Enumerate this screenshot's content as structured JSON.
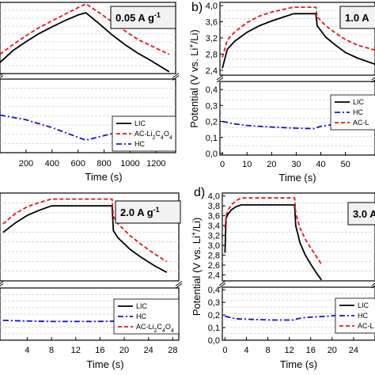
{
  "colors": {
    "LIC": "#000000",
    "AC": "#ee1111",
    "HC": "#1111cc",
    "grid": "#d0d0d0",
    "rate_box": "#f2f2f2"
  },
  "chart_data": [
    {
      "id": "a",
      "type": "line",
      "letter": "",
      "rate": "0.05 A g",
      "rate_sup": "-1",
      "xlabel": "Time (s)",
      "ylabel": "",
      "xlim": [
        0,
        1350
      ],
      "xticks": [
        "200",
        "400",
        "600",
        "800",
        "1000",
        "1200"
      ],
      "xtick_values": [
        200,
        400,
        600,
        800,
        1000,
        1200
      ],
      "yticks_upper": [],
      "yticks_lower": [],
      "legend_order": [
        "LIC",
        "AC",
        "HC"
      ],
      "series": [
        {
          "name": "LIC",
          "key": "LIC",
          "style": "solid",
          "x": [
            0,
            100,
            200,
            300,
            400,
            500,
            600,
            660,
            760,
            860,
            960,
            1060,
            1160,
            1300
          ],
          "y": [
            2.5,
            2.82,
            3.06,
            3.28,
            3.46,
            3.63,
            3.78,
            3.84,
            3.55,
            3.25,
            2.98,
            2.75,
            2.55,
            2.25
          ]
        },
        {
          "name": "AC-Li",
          "key": "AC",
          "style": "dashed",
          "x": [
            0,
            100,
            200,
            300,
            400,
            500,
            600,
            660,
            760,
            860,
            960,
            1060,
            1160,
            1300
          ],
          "y": [
            2.72,
            2.98,
            3.22,
            3.44,
            3.62,
            3.8,
            3.98,
            4.08,
            3.85,
            3.6,
            3.35,
            3.12,
            2.95,
            2.72
          ]
        },
        {
          "name": "HC",
          "key": "HC",
          "style": "dashdot",
          "x": [
            0,
            200,
            400,
            660,
            900,
            1100,
            1300
          ],
          "y": [
            0.22,
            0.19,
            0.14,
            0.06,
            0.11,
            0.15,
            0.19
          ]
        }
      ]
    },
    {
      "id": "b",
      "type": "line",
      "letter": "b)",
      "rate": "1.0 A",
      "rate_sup": "",
      "xlabel": "Time (s)",
      "ylabel": "Potential (V vs. Li",
      "ylabel_sup": "+",
      "ylabel_tail": "/Li)",
      "xlim": [
        -1,
        62
      ],
      "xticks": [
        "0",
        "10",
        "20",
        "30",
        "40",
        "50"
      ],
      "xtick_values": [
        0,
        10,
        20,
        30,
        40,
        50
      ],
      "yticks_upper": [
        "4,0",
        "3,6",
        "3,2",
        "2,8",
        "2,4"
      ],
      "yticks_upper_values": [
        4.0,
        3.6,
        3.2,
        2.8,
        2.4
      ],
      "yticks_lower": [
        "0,4",
        "0,3",
        "0,2",
        "0,1",
        "0,0"
      ],
      "yticks_lower_values": [
        0.4,
        0.3,
        0.2,
        0.1,
        0.0
      ],
      "legend_order": [
        "LIC",
        "HC",
        "AC"
      ],
      "series": [
        {
          "name": "LIC",
          "key": "LIC",
          "style": "solid",
          "x": [
            0,
            2,
            5,
            10,
            15,
            20,
            25,
            29,
            38,
            38.5,
            42,
            46,
            50,
            55,
            62
          ],
          "y": [
            2.45,
            2.92,
            3.12,
            3.34,
            3.5,
            3.62,
            3.72,
            3.8,
            3.8,
            3.5,
            3.22,
            3.02,
            2.84,
            2.7,
            2.55
          ]
        },
        {
          "name": "HC",
          "key": "HC",
          "style": "dashdot",
          "x": [
            0,
            5,
            10,
            20,
            30,
            37,
            38,
            40,
            45,
            50,
            55,
            62
          ],
          "y": [
            0.2,
            0.185,
            0.175,
            0.165,
            0.158,
            0.155,
            0.16,
            0.17,
            0.18,
            0.19,
            0.2,
            0.21
          ]
        },
        {
          "name": "AC-L",
          "key": "AC",
          "style": "dashed",
          "x": [
            0,
            2,
            5,
            10,
            15,
            20,
            25,
            29,
            38,
            38.5,
            42,
            46,
            50,
            55,
            62
          ],
          "y": [
            2.72,
            3.15,
            3.35,
            3.58,
            3.74,
            3.84,
            3.91,
            3.96,
            3.96,
            3.72,
            3.5,
            3.32,
            3.16,
            3.02,
            2.9
          ]
        }
      ]
    },
    {
      "id": "c",
      "type": "line",
      "letter": "",
      "rate": "2.0 A g",
      "rate_sup": "-1",
      "xlabel": "Time (s)",
      "ylabel": "",
      "xlim": [
        -0.5,
        29
      ],
      "xticks": [
        "4",
        "8",
        "12",
        "16",
        "20",
        "24",
        "28"
      ],
      "xtick_values": [
        4,
        8,
        12,
        16,
        20,
        24,
        28
      ],
      "yticks_upper": [],
      "yticks_lower": [],
      "legend_order": [
        "LIC",
        "HC",
        "AC"
      ],
      "series": [
        {
          "name": "LIC",
          "key": "LIC",
          "style": "solid",
          "x": [
            0,
            2,
            4,
            6,
            8,
            18,
            18.2,
            19,
            21,
            23,
            25,
            27
          ],
          "y": [
            3.18,
            3.4,
            3.58,
            3.7,
            3.8,
            3.8,
            3.22,
            3.05,
            2.78,
            2.58,
            2.4,
            2.25
          ]
        },
        {
          "name": "HC",
          "key": "HC",
          "style": "dashdot",
          "x": [
            0,
            3,
            8,
            14,
            18,
            18.8,
            21,
            24,
            27
          ],
          "y": [
            0.16,
            0.155,
            0.15,
            0.15,
            0.152,
            0.16,
            0.17,
            0.178,
            0.185
          ]
        },
        {
          "name": "AC-Li",
          "key": "AC",
          "style": "dashed",
          "x": [
            0,
            2,
            4,
            6,
            8,
            18,
            18.2,
            19,
            21,
            23,
            25,
            27
          ],
          "y": [
            3.38,
            3.62,
            3.78,
            3.88,
            3.96,
            3.96,
            3.55,
            3.38,
            3.1,
            2.88,
            2.68,
            2.5
          ]
        }
      ]
    },
    {
      "id": "d",
      "type": "line",
      "letter": "d)",
      "rate": "3.0 A",
      "rate_sup": "",
      "xlabel": "Time (s)",
      "ylabel": "Potential (V vs. Li",
      "ylabel_sup": "+",
      "ylabel_tail": "/Li)",
      "xlim": [
        -0.5,
        28
      ],
      "xticks": [
        "0",
        "4",
        "8",
        "12",
        "16",
        "20",
        "24"
      ],
      "xtick_values": [
        0,
        4,
        8,
        12,
        16,
        20,
        24
      ],
      "yticks_upper": [
        "4,0",
        "3,8",
        "3,6",
        "3,4",
        "3,2",
        "3,0",
        "2,8",
        "2,6",
        "2,4"
      ],
      "yticks_upper_values": [
        4.0,
        3.8,
        3.6,
        3.4,
        3.2,
        3.0,
        2.8,
        2.6,
        2.4
      ],
      "yticks_lower": [
        "0,4",
        "0,3",
        "0,2",
        "0,1",
        "0,0"
      ],
      "yticks_lower_values": [
        0.4,
        0.3,
        0.2,
        0.1,
        0.0
      ],
      "legend_order": [
        "LIC",
        "HC",
        "AC"
      ],
      "series": [
        {
          "name": "LIC",
          "key": "LIC",
          "style": "solid",
          "x": [
            0,
            0.2,
            0.6,
            1.2,
            2,
            3,
            13,
            13.2,
            14,
            15,
            16,
            17,
            18
          ],
          "y": [
            2.85,
            3.55,
            3.64,
            3.72,
            3.78,
            3.82,
            3.82,
            3.4,
            3.05,
            2.8,
            2.62,
            2.45,
            2.3
          ]
        },
        {
          "name": "HC",
          "key": "HC",
          "style": "dashdot",
          "x": [
            0,
            2,
            5,
            9,
            13,
            13.5,
            15,
            17,
            19,
            22,
            28
          ],
          "y": [
            0.19,
            0.17,
            0.165,
            0.16,
            0.16,
            0.17,
            0.18,
            0.185,
            0.19,
            0.2,
            0.21
          ]
        },
        {
          "name": "AC-L",
          "key": "AC",
          "style": "dashed",
          "x": [
            0,
            0.2,
            0.6,
            1.2,
            2,
            3,
            13,
            13.2,
            14,
            15,
            16,
            17,
            18
          ],
          "y": [
            3.35,
            3.6,
            3.72,
            3.82,
            3.9,
            3.96,
            3.96,
            3.65,
            3.35,
            3.12,
            2.95,
            2.78,
            2.62
          ]
        }
      ]
    }
  ]
}
